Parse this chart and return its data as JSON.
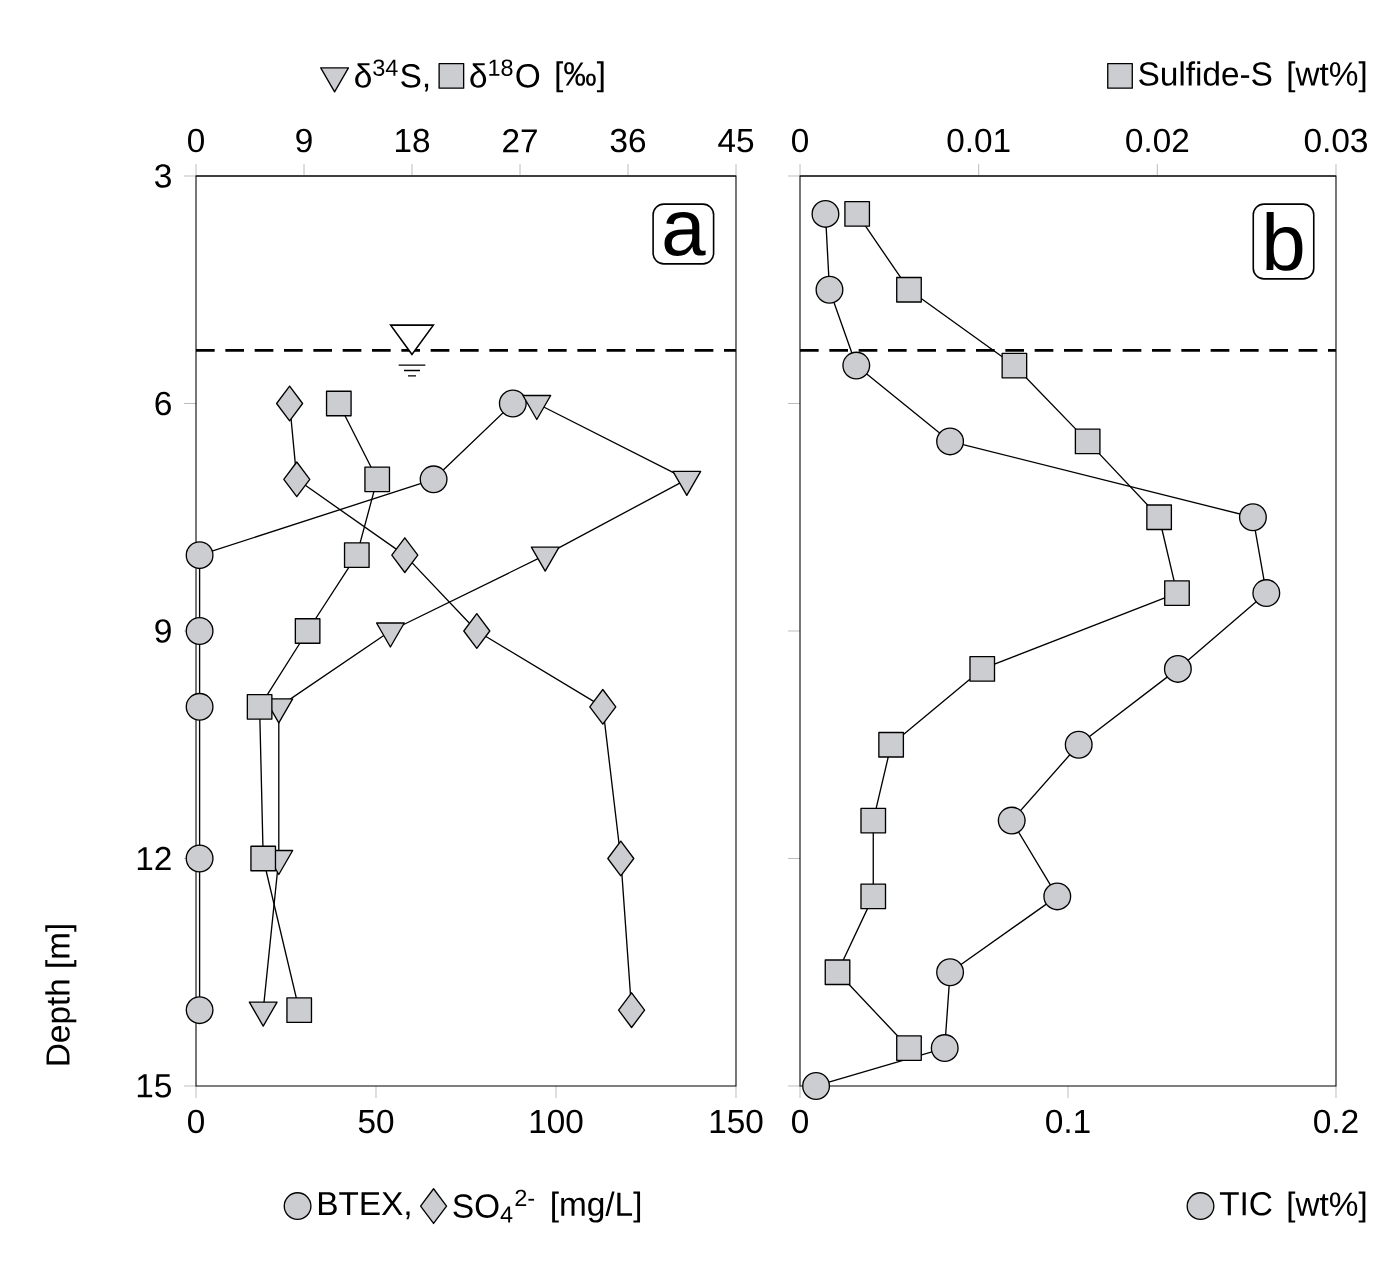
{
  "chart_data": [
    {
      "type": "line",
      "xlabel": "[mg/L]",
      "x2label": "[‰]",
      "ylabel": "Depth [m]",
      "annotations": [
        "a"
      ],
      "xlim": [
        0,
        150
      ],
      "xticks": [
        0,
        50,
        100,
        150
      ],
      "x2lim": [
        0,
        45
      ],
      "x2ticks": [
        0,
        9,
        18,
        27,
        36,
        45
      ],
      "ylim": [
        15,
        3
      ],
      "yticks": [
        3,
        6,
        9,
        12,
        15
      ],
      "legend": "bottom",
      "line_style": "solid",
      "ref_lines": [
        {
          "axis": "y",
          "value": 5.3,
          "line_style": "dashed",
          "color": "#000000"
        }
      ],
      "series": [
        {
          "name": "BTEX,",
          "marker": "circle",
          "color": "#cccdd1",
          "x": [
            88,
            66,
            1,
            1,
            1,
            1,
            1
          ],
          "values": [
            6,
            7,
            8,
            9,
            10,
            12,
            14
          ]
        },
        {
          "name": "SO$_{4}$$^{2-}$",
          "marker": "diamond",
          "color": "#cccdd1",
          "x": [
            26,
            28,
            58,
            78,
            113,
            118,
            121
          ],
          "values": [
            6,
            7,
            8,
            9,
            10,
            12,
            14
          ]
        },
        {
          "name": "δ$^{34}$S,",
          "marker": "triangle",
          "axis": "x2",
          "color": "#cccdd1",
          "x": [
            28.4,
            40.9,
            29.1,
            16.2,
            6.9,
            6.9,
            5.6
          ],
          "values": [
            6,
            7,
            8,
            9,
            10,
            12,
            14
          ]
        },
        {
          "name": "δ$^{18}$O",
          "marker": "square",
          "axis": "x2",
          "color": "#cccdd1",
          "x": [
            11.9,
            15.1,
            13.4,
            9.3,
            5.3,
            5.6,
            8.6
          ],
          "values": [
            6,
            7,
            8,
            9,
            10,
            12,
            14
          ]
        }
      ]
    },
    {
      "type": "line",
      "xlabel": "[wt%]",
      "x2label": "[wt%]",
      "annotations": [
        "b"
      ],
      "xlim": [
        0,
        0.2
      ],
      "xticks": [
        0,
        0.1,
        0.2
      ],
      "x2lim": [
        0,
        0.03
      ],
      "x2ticks": [
        0,
        0.01,
        0.02,
        0.03
      ],
      "ylim": [
        15,
        3
      ],
      "yticks": [
        3,
        6,
        9,
        12,
        15
      ],
      "tick_labels": "x",
      "legend": "bottom right",
      "line_style": "solid",
      "ref_lines": [
        {
          "axis": "y",
          "value": 5.3,
          "line_style": "dashed",
          "color": "#000000"
        }
      ],
      "series": [
        {
          "name": "TIC",
          "marker": "circle",
          "color": "#cccdd1",
          "x": [
            0.0095,
            0.011,
            0.021,
            0.056,
            0.169,
            0.174,
            0.141,
            0.104,
            0.079,
            0.096,
            0.056,
            0.054,
            0.006
          ],
          "values": [
            3.5,
            4.5,
            5.5,
            6.5,
            7.5,
            8.5,
            9.5,
            10.5,
            11.5,
            12.5,
            13.5,
            14.5,
            15
          ]
        },
        {
          "name": "Sulfide-S",
          "marker": "square",
          "axis": "x2",
          "color": "#cccdd1",
          "x": [
            0.0032,
            0.0061,
            0.012,
            0.0161,
            0.0201,
            0.0211,
            0.0102,
            0.0051,
            0.0041,
            0.0041,
            0.0021,
            0.0061
          ],
          "values": [
            3.5,
            4.5,
            5.5,
            6.5,
            7.5,
            8.5,
            9.5,
            10.5,
            11.5,
            12.5,
            13.5,
            14.5
          ]
        }
      ]
    }
  ]
}
